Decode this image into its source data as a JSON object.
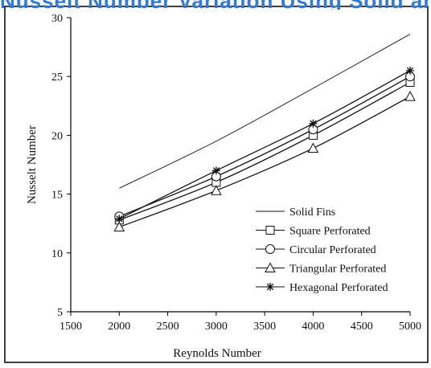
{
  "page": {
    "top_partial_text": "Nusselt Number Variation Using Solid and Perforated Fin Technology"
  },
  "chart_data": {
    "type": "line",
    "title": "",
    "xlabel": "Reynolds Number",
    "ylabel": "Nusselt Number",
    "xlim": [
      1500,
      5000
    ],
    "ylim": [
      5,
      30
    ],
    "x_ticks": [
      1500,
      2000,
      2500,
      3000,
      3500,
      4000,
      4500,
      5000
    ],
    "y_ticks": [
      5,
      10,
      15,
      20,
      25,
      30
    ],
    "grid": false,
    "legend_position": "bottom-right",
    "x": [
      2000,
      3000,
      4000,
      5000
    ],
    "series": [
      {
        "name": "Solid Fins",
        "marker": "none",
        "values": [
          15.5,
          19.5,
          24.0,
          28.6
        ],
        "color": "#111111"
      },
      {
        "name": "Square Perforated",
        "marker": "square",
        "values": [
          12.8,
          16.0,
          20.0,
          24.5
        ],
        "color": "#111111"
      },
      {
        "name": "Circular Perforated",
        "marker": "circle",
        "values": [
          13.1,
          16.5,
          20.5,
          25.0
        ],
        "color": "#111111"
      },
      {
        "name": "Triangular Perforated",
        "marker": "triangle",
        "values": [
          12.2,
          15.3,
          18.9,
          23.3
        ],
        "color": "#111111"
      },
      {
        "name": "Hexagonal Perforated",
        "marker": "star",
        "values": [
          12.9,
          17.0,
          21.0,
          25.5
        ],
        "color": "#111111"
      }
    ]
  }
}
